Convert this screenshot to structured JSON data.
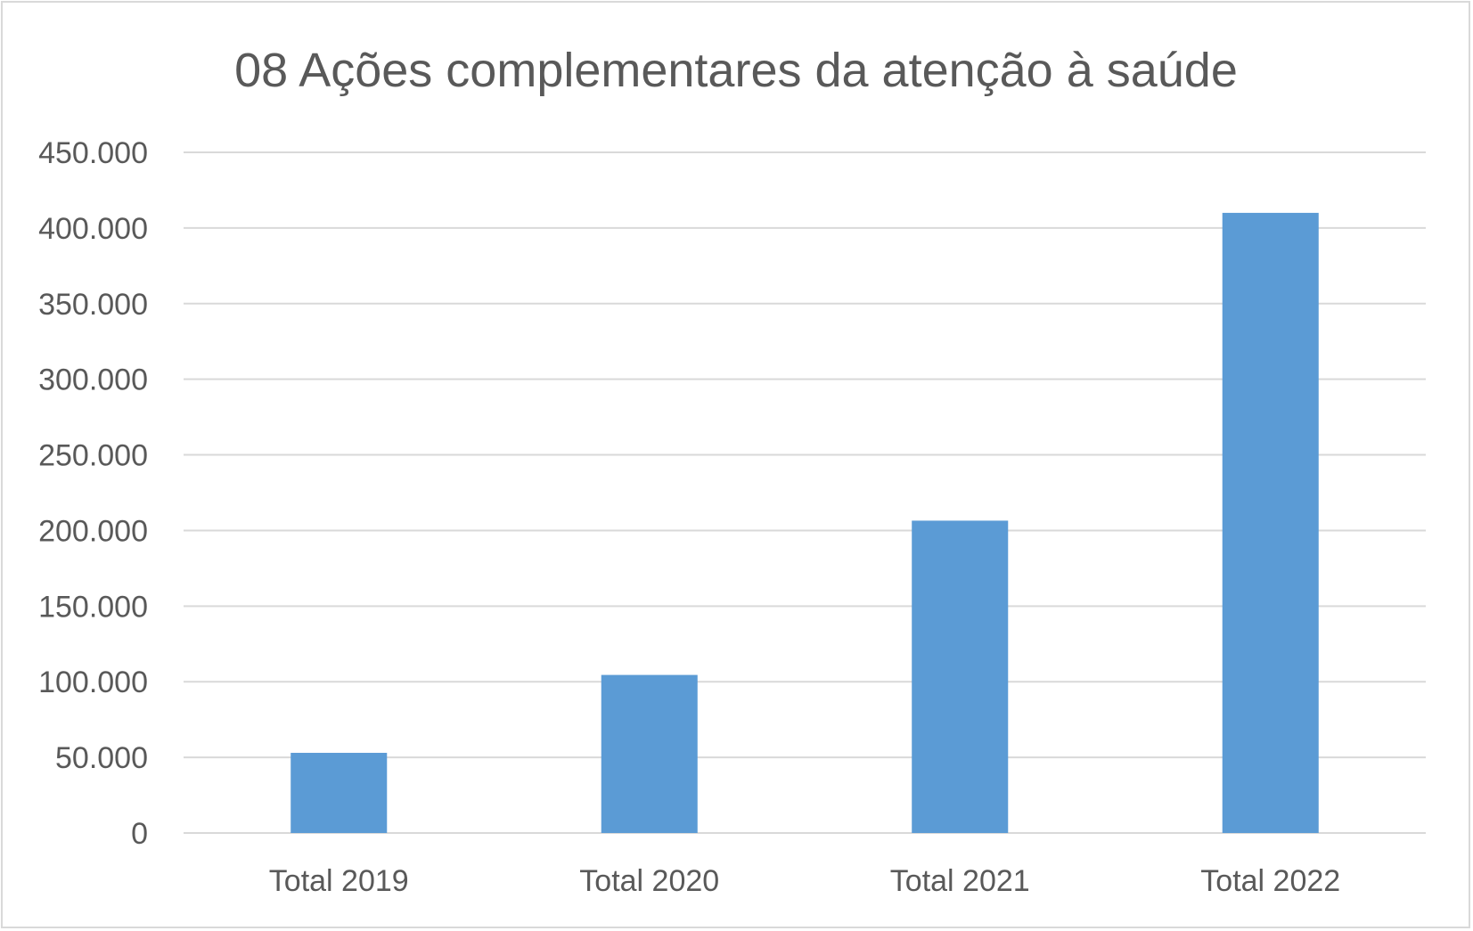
{
  "chart_data": {
    "type": "bar",
    "title": "08 Ações complementares da atenção à saúde",
    "categories": [
      "Total 2019",
      "Total 2020",
      "Total 2021",
      "Total 2022"
    ],
    "values": [
      53000,
      104500,
      206500,
      410000
    ],
    "ylim": [
      0,
      450000
    ],
    "yticks": [
      0,
      50000,
      100000,
      150000,
      200000,
      250000,
      300000,
      350000,
      400000,
      450000
    ],
    "ytick_labels": [
      "0",
      "50.000",
      "100.000",
      "150.000",
      "200.000",
      "250.000",
      "300.000",
      "350.000",
      "400.000",
      "450.000"
    ],
    "xlabel": "",
    "ylabel": "",
    "grid": true,
    "legend": "none",
    "bar_color": "#5b9bd5"
  }
}
